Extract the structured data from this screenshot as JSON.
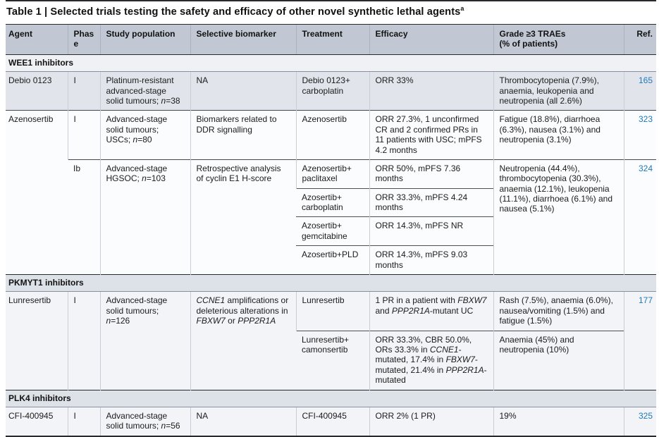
{
  "title": {
    "text": "Table 1 | Selected trials testing the safety and efficacy of other novel synthetic lethal agents",
    "footnote_marker": "a"
  },
  "colors": {
    "header_bg": "#c1c7d3",
    "band_light": "#eff1f4",
    "band_gray": "#dde1e8",
    "row_shaded": "#e1e5eb",
    "row_white": "#fbfcfd",
    "row_light": "#f2f4f7",
    "ref_blue": "#1e79b8",
    "rule_dark": "#27292c",
    "rule_mid": "#43474d",
    "rule_gray": "#8a909b",
    "vline": "#c9cdd5",
    "text": "#1b1b1b"
  },
  "columns": {
    "agent": "Agent",
    "phase": "Phase",
    "study": "Study population",
    "biomarker": "Selective biomarker",
    "treatment": "Treatment",
    "efficacy": "Efficacy",
    "traes_line1": "Grade ≥3 TRAEs",
    "traes_line2": "(% of patients)",
    "ref": "Ref."
  },
  "sections": {
    "wee1": "WEE1 inhibitors",
    "pkmyt1": "PKMYT1 inhibitors",
    "plk4": "PLK4 inhibitors"
  },
  "rows": {
    "debio": {
      "agent": "Debio 0123",
      "phase": "I",
      "study": "Platinum-resistant advanced-stage solid tumours; *n*=38",
      "biomarker": "NA",
      "treatment": "Debio 0123+ carboplatin",
      "efficacy": "ORR 33%",
      "traes": "Thrombocytopenia (7.9%), anaemia, leukopenia and neutropenia (all 2.6%)",
      "ref": "165"
    },
    "azenosertib_i": {
      "agent": "Azenosertib",
      "phase": "I",
      "study": "Advanced-stage solid tumours; USCs; *n*=80",
      "biomarker": "Biomarkers related to DDR signalling",
      "treatment": "Azenosertib",
      "efficacy": "ORR 27.3%, 1 unconfirmed CR and 2 confirmed PRs in 11 patients with USC; mPFS 4.2 months",
      "traes": "Fatigue (18.8%), diarrhoea (6.3%), nausea (3.1%) and neutropenia (3.1%)",
      "ref": "323"
    },
    "azenosertib_ib": {
      "phase": "Ib",
      "study": "Advanced-stage HGSOC; *n*=103",
      "biomarker": "Retrospective analysis of cyclin E1 H-score",
      "sub_rows": [
        {
          "treatment": "Azenosertib+ paclitaxel",
          "efficacy": "ORR 50%, mPFS 7.36 months"
        },
        {
          "treatment": "Azosertib+ carboplatin",
          "efficacy": "ORR 33.3%, mPFS 4.24 months"
        },
        {
          "treatment": "Azosertib+ gemcitabine",
          "efficacy": "ORR 14.3%, mPFS NR"
        },
        {
          "treatment": "Azosertib+PLD",
          "efficacy": "ORR 14.3%, mPFS 9.03 months"
        }
      ],
      "traes": "Neutropenia (44.4%), thrombocytopenia (30.3%), anaemia (12.1%), leukopenia (11.1%), diarrhoea (6.1%) and nausea (5.1%)",
      "ref": "324"
    },
    "lunresertib": {
      "agent": "Lunresertib",
      "phase": "I",
      "study": "Advanced-stage solid tumours; *n*=126",
      "biomarker": "*CCNE1* amplifications or deleterious alterations in *FBXW7* or *PPP2R1A*",
      "sub_rows": [
        {
          "treatment": "Lunresertib",
          "efficacy": "1 PR in a patient with *FBXW7* and *PPP2R1A*-mutant UC",
          "traes": "Rash (7.5%), anaemia (6.0%), nausea/vomiting (1.5%) and fatigue (1.5%)"
        },
        {
          "treatment": "Lunresertib+ camonsertib",
          "efficacy": "ORR 33.3%, CBR 50.0%, ORs 33.3% in *CCNE1*-mutated, 17.4% in *FBXW7*-mutated, 21.4% in *PPP2R1A*-mutated",
          "traes": "Anaemia (45%) and neutropenia (10%)"
        }
      ],
      "ref": "177"
    },
    "cfi": {
      "agent": "CFI-400945",
      "phase": "I",
      "study": "Advanced-stage solid tumours; *n*=56",
      "biomarker": "NA",
      "treatment": "CFI-400945",
      "efficacy": "ORR 2% (1 PR)",
      "traes": "19%",
      "ref": "325"
    }
  }
}
